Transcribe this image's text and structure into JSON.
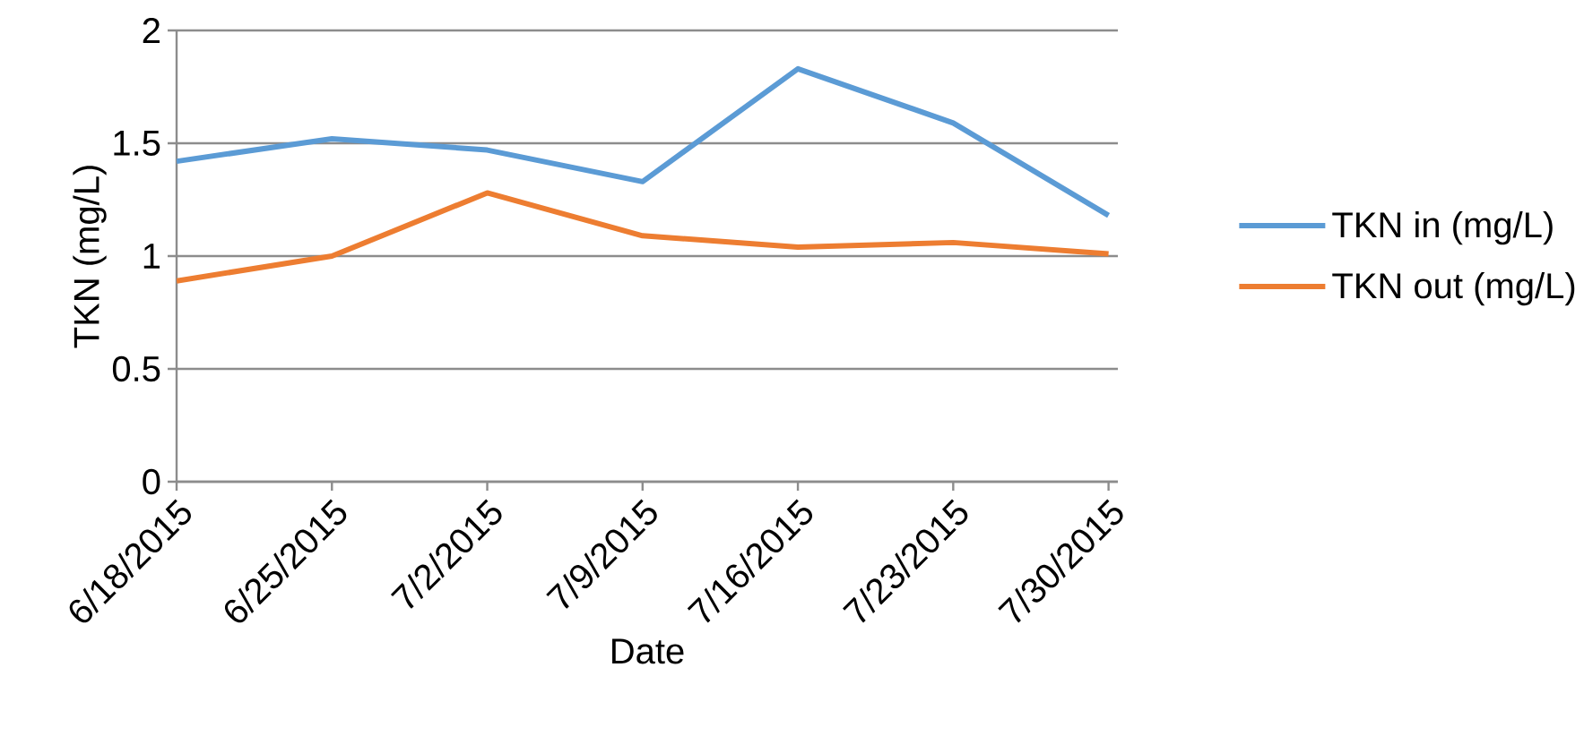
{
  "chart_data": {
    "type": "line",
    "xlabel": "Date",
    "ylabel": "TKN (mg/L)",
    "categories": [
      "6/18/2015",
      "6/25/2015",
      "7/2/2015",
      "7/9/2015",
      "7/16/2015",
      "7/23/2015",
      "7/30/2015"
    ],
    "series": [
      {
        "name": "TKN in (mg/L)",
        "color": "#5b9bd5",
        "values": [
          1.42,
          1.52,
          1.47,
          1.33,
          1.83,
          1.59,
          1.18
        ]
      },
      {
        "name": "TKN out (mg/L)",
        "color": "#ed7d31",
        "values": [
          0.89,
          1.0,
          1.28,
          1.09,
          1.04,
          1.06,
          1.01
        ]
      }
    ],
    "ylim": [
      0,
      2
    ],
    "yticks": [
      0,
      0.5,
      1,
      1.5,
      2
    ],
    "grid": "y",
    "legend": "right",
    "marker": "none",
    "line_style": "solid"
  }
}
